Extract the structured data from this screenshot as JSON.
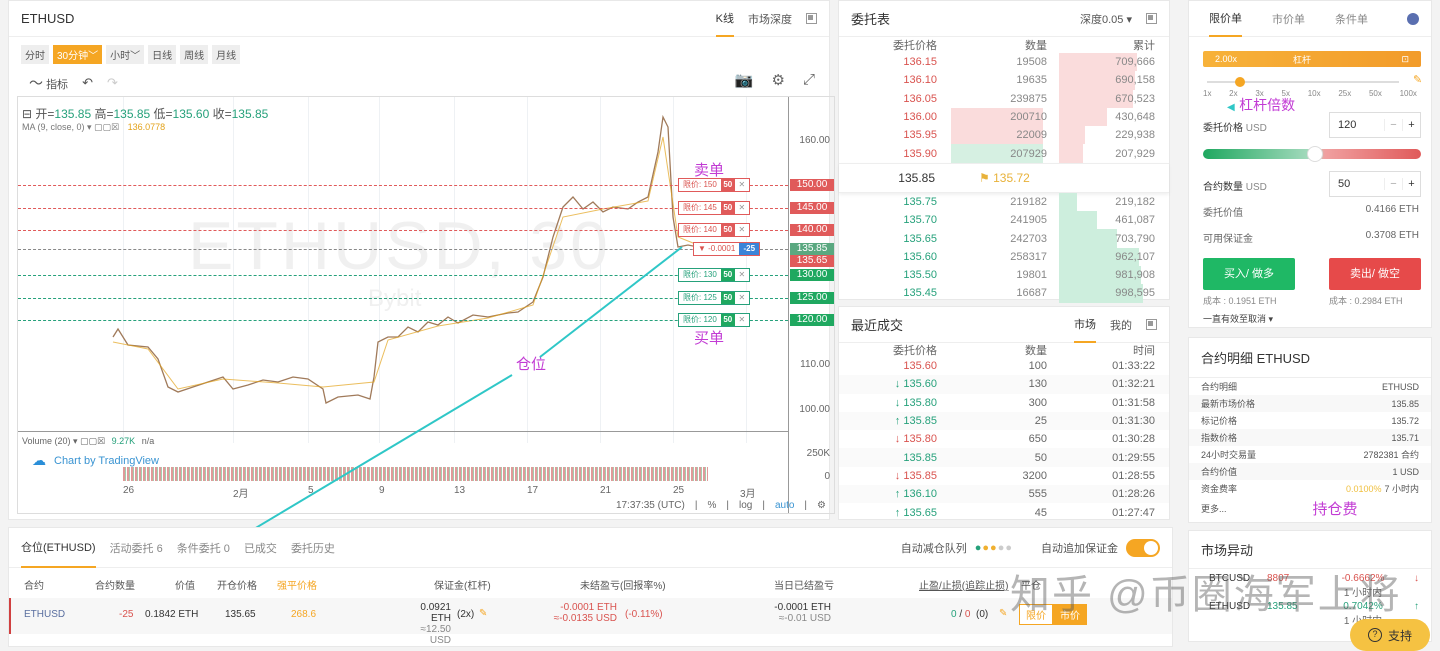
{
  "chart_panel": {
    "symbol": "ETHUSD",
    "tabs": [
      "K线",
      "市场深度"
    ],
    "timeframes": [
      "分时",
      "30分钟",
      "小时",
      "日线",
      "周线",
      "月线"
    ],
    "active_timeframe": "30分钟",
    "indicator_label": "指标",
    "ohlc": {
      "open_label": "开=",
      "open": "135.85",
      "high_label": "高=",
      "high": "135.85",
      "low_label": "低=",
      "low": "135.60",
      "close_label": "收=",
      "close": "135.85"
    },
    "ma": {
      "label": "MA (9, close, 0)",
      "value": "136.0778"
    },
    "watermark": "ETHUSD, 30",
    "watermark_sub": "Bybit",
    "y_ticks": [
      "160.00",
      "110.00",
      "100.00"
    ],
    "price_lines": [
      {
        "price": "150.00",
        "side": "sell",
        "label": "限价: 150",
        "qty": "50"
      },
      {
        "price": "145.00",
        "side": "sell",
        "label": "限价: 145",
        "qty": "50"
      },
      {
        "price": "140.00",
        "side": "sell",
        "label": "限价: 140",
        "qty": "50"
      },
      {
        "price": "130.00",
        "side": "buy",
        "label": "限价: 130",
        "qty": "50"
      },
      {
        "price": "125.00",
        "side": "buy",
        "label": "限价: 125",
        "qty": "50"
      },
      {
        "price": "120.00",
        "side": "buy",
        "label": "限价: 120",
        "qty": "50"
      }
    ],
    "last_price": "135.85",
    "entry_price": "135.65",
    "position_tag": {
      "pnl": "-0.0001",
      "qty": "-25"
    },
    "annotations": {
      "sell": "卖单",
      "buy": "买单",
      "position": "仓位"
    },
    "volume": {
      "label": "Volume (20)",
      "value": "9.27K",
      "na": "n/a",
      "ticks": [
        "250K",
        "0"
      ]
    },
    "tradingview": "Chart by TradingView",
    "x_ticks": [
      "26",
      "2月",
      "5",
      "9",
      "13",
      "17",
      "21",
      "25",
      "3月"
    ],
    "footer": {
      "time": "17:37:35 (UTC)",
      "pct": "%",
      "log": "log",
      "auto": "auto"
    }
  },
  "orderbook": {
    "title": "委托表",
    "depth": "深度0.05",
    "headers": [
      "委托价格",
      "数量",
      "累计"
    ],
    "asks": [
      {
        "price": "136.15",
        "qty": "19508",
        "total": "709,666"
      },
      {
        "price": "136.10",
        "qty": "19635",
        "total": "690,158"
      },
      {
        "price": "136.05",
        "qty": "239875",
        "total": "670,523"
      },
      {
        "price": "136.00",
        "qty": "200710",
        "total": "430,648"
      },
      {
        "price": "135.95",
        "qty": "22009",
        "total": "229,938"
      },
      {
        "price": "135.90",
        "qty": "207929",
        "total": "207,929"
      }
    ],
    "last": "135.85",
    "mark": "135.72",
    "bids": [
      {
        "price": "135.75",
        "qty": "219182",
        "total": "219,182"
      },
      {
        "price": "135.70",
        "qty": "241905",
        "total": "461,087"
      },
      {
        "price": "135.65",
        "qty": "242703",
        "total": "703,790"
      },
      {
        "price": "135.60",
        "qty": "258317",
        "total": "962,107"
      },
      {
        "price": "135.50",
        "qty": "19801",
        "total": "981,908"
      },
      {
        "price": "135.45",
        "qty": "16687",
        "total": "998,595"
      }
    ]
  },
  "trades": {
    "title": "最近成交",
    "tabs": [
      "市场",
      "我的"
    ],
    "headers": [
      "委托价格",
      "数量",
      "时间"
    ],
    "rows": [
      {
        "dir": "",
        "price": "135.60",
        "qty": "100",
        "time": "01:33:22",
        "color": "red"
      },
      {
        "dir": "↓",
        "price": "135.60",
        "qty": "130",
        "time": "01:32:21",
        "color": "grn"
      },
      {
        "dir": "↓",
        "price": "135.80",
        "qty": "300",
        "time": "01:31:58",
        "color": "grn"
      },
      {
        "dir": "↑",
        "price": "135.85",
        "qty": "25",
        "time": "01:31:30",
        "color": "grn"
      },
      {
        "dir": "↓",
        "price": "135.80",
        "qty": "650",
        "time": "01:30:28",
        "color": "red"
      },
      {
        "dir": "",
        "price": "135.85",
        "qty": "50",
        "time": "01:29:55",
        "color": "grn"
      },
      {
        "dir": "↓",
        "price": "135.85",
        "qty": "3200",
        "time": "01:28:55",
        "color": "red"
      },
      {
        "dir": "↑",
        "price": "136.10",
        "qty": "555",
        "time": "01:28:26",
        "color": "grn"
      },
      {
        "dir": "↑",
        "price": "135.65",
        "qty": "45",
        "time": "01:27:47",
        "color": "grn"
      }
    ]
  },
  "order_panel": {
    "tabs": [
      "限价单",
      "市价单",
      "条件单"
    ],
    "leverage_value": "2.00x",
    "leverage_label": "杠杆",
    "leverage_marks": [
      "1x",
      "2x",
      "3x",
      "5x",
      "10x",
      "25x",
      "50x",
      "100x"
    ],
    "annotation": "杠杆倍数",
    "price_label": "委托价格",
    "price_unit": "USD",
    "price_value": "120",
    "qty_label": "合约数量",
    "qty_unit": "USD",
    "qty_value": "50",
    "order_value_label": "委托价值",
    "order_value": "0.4166 ETH",
    "avail_label": "可用保证金",
    "avail": "0.3708 ETH",
    "buy_label": "买入/ 做多",
    "sell_label": "卖出/ 做空",
    "buy_cost": "成本 : 0.1951 ETH",
    "sell_cost": "成本 : 0.2984 ETH",
    "tif": "一直有效至取消"
  },
  "contract_details": {
    "title": "合约明细 ETHUSD",
    "rows": [
      {
        "k": "合约明细",
        "v": "ETHUSD"
      },
      {
        "k": "最新市场价格",
        "v": "135.85"
      },
      {
        "k": "标记价格",
        "v": "135.72"
      },
      {
        "k": "指数价格",
        "v": "135.71"
      },
      {
        "k": "24小时交易量",
        "v": "2782381 合约"
      },
      {
        "k": "合约价值",
        "v": "1 USD"
      }
    ],
    "funding_label": "资金费率",
    "funding_rate": "0.0100%",
    "funding_time": "7 小时内",
    "more": "更多...",
    "annotation": "持仓费"
  },
  "market_moves": {
    "title": "市场异动",
    "rows": [
      {
        "sym": "BTCUSD",
        "price": "8807",
        "pct": "-0.6662%",
        "period": "1 小时内",
        "dir": "↓"
      },
      {
        "sym": "ETHUSD",
        "price": "135.85",
        "pct": "0.7042%",
        "period": "1 小时内",
        "dir": "↑"
      }
    ],
    "support": "支持"
  },
  "positions": {
    "tabs": [
      "仓位(ETHUSD)",
      "活动委托 6",
      "条件委托 0",
      "已成交",
      "委托历史"
    ],
    "adl_label": "自动减仓队列",
    "auto_margin_label": "自动追加保证金",
    "headers": [
      "合约",
      "合约数量",
      "价值",
      "开仓价格",
      "强平价格",
      "保证金(杠杆)",
      "未结盈亏(回报率%)",
      "当日已结盈亏",
      "止盈/止损(追踪止损)",
      "平仓"
    ],
    "row": {
      "symbol": "ETHUSD",
      "qty": "-25",
      "value": "0.1842 ETH",
      "entry": "135.65",
      "liq": "268.6",
      "margin": "0.0921 ETH",
      "margin_usd": "≈12.50 USD",
      "lev": "(2x)",
      "upnl": "-0.0001 ETH",
      "upnl_usd": "≈-0.0135 USD",
      "roe": "(-0.11%)",
      "rpnl": "-0.0001 ETH",
      "rpnl_usd": "≈-0.01 USD",
      "tpsl_tp": "0",
      "tpsl_sl": "0",
      "trail": "(0)",
      "close_limit": "限价",
      "close_market": "市价"
    }
  },
  "watermark_zhihu": "知乎 @币圈海军上将"
}
